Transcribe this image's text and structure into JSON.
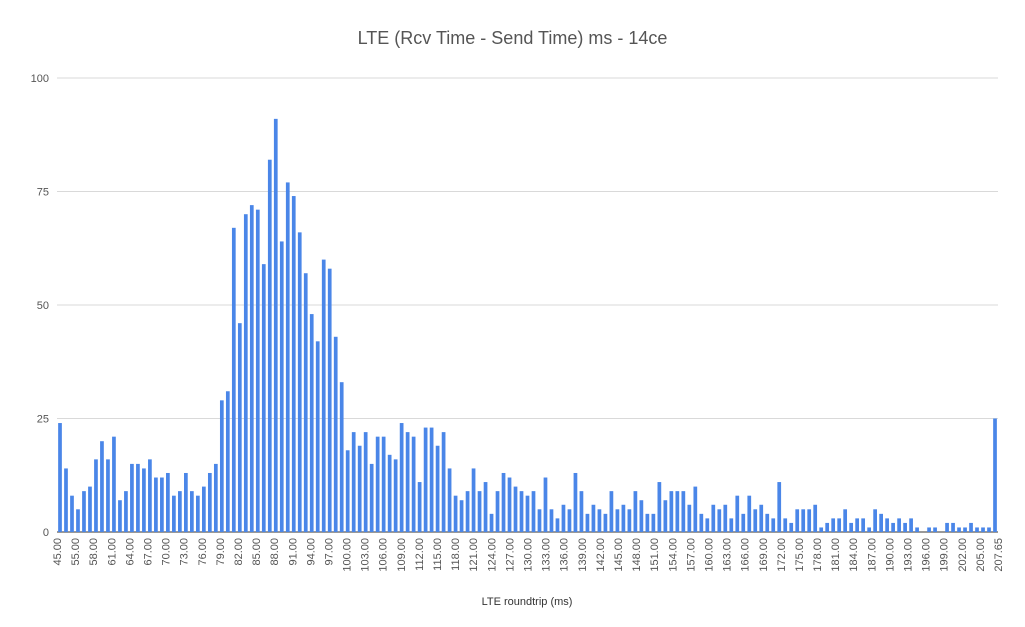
{
  "chart_data": {
    "type": "bar",
    "title": "LTE (Rcv Time - Send Time) ms - 14ce",
    "xlabel": "LTE roundtrip (ms)",
    "ylabel": "",
    "ylim": [
      0,
      100
    ],
    "yticks": [
      0,
      25,
      50,
      75,
      100
    ],
    "grid": true,
    "bar_color": "#4a86e8",
    "x_tick_labels": [
      "45.00",
      "55.00",
      "58.00",
      "61.00",
      "64.00",
      "67.00",
      "70.00",
      "73.00",
      "76.00",
      "79.00",
      "82.00",
      "85.00",
      "88.00",
      "91.00",
      "94.00",
      "97.00",
      "100.00",
      "103.00",
      "106.00",
      "109.00",
      "112.00",
      "115.00",
      "118.00",
      "121.00",
      "124.00",
      "127.00",
      "130.00",
      "133.00",
      "136.00",
      "139.00",
      "142.00",
      "145.00",
      "148.00",
      "151.00",
      "154.00",
      "157.00",
      "160.00",
      "163.00",
      "166.00",
      "169.00",
      "172.00",
      "175.00",
      "178.00",
      "181.00",
      "184.00",
      "187.00",
      "190.00",
      "193.00",
      "196.00",
      "199.00",
      "202.00",
      "205.00",
      "207.65"
    ],
    "values": [
      24,
      14,
      8,
      5,
      9,
      10,
      16,
      20,
      16,
      21,
      7,
      9,
      15,
      15,
      14,
      16,
      12,
      12,
      13,
      8,
      9,
      13,
      9,
      8,
      10,
      13,
      15,
      29,
      31,
      67,
      46,
      70,
      72,
      71,
      59,
      82,
      91,
      64,
      77,
      74,
      66,
      57,
      48,
      42,
      60,
      58,
      43,
      33,
      18,
      22,
      19,
      22,
      15,
      21,
      21,
      17,
      16,
      24,
      22,
      21,
      11,
      23,
      23,
      19,
      22,
      14,
      8,
      7,
      9,
      14,
      9,
      11,
      4,
      9,
      13,
      12,
      10,
      9,
      8,
      9,
      5,
      12,
      5,
      3,
      6,
      5,
      13,
      9,
      4,
      6,
      5,
      4,
      9,
      5,
      6,
      5,
      9,
      7,
      4,
      4,
      11,
      7,
      9,
      9,
      9,
      6,
      10,
      4,
      3,
      6,
      5,
      6,
      3,
      8,
      4,
      8,
      5,
      6,
      4,
      3,
      11,
      3,
      2,
      5,
      5,
      5,
      6,
      1,
      2,
      3,
      3,
      5,
      2,
      3,
      3,
      1,
      5,
      4,
      3,
      2,
      3,
      2,
      3,
      1,
      0,
      1,
      1,
      0,
      2,
      2,
      1,
      1,
      2,
      1,
      1,
      1,
      25
    ]
  }
}
